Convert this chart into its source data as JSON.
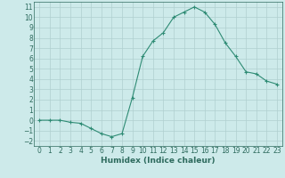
{
  "x": [
    0,
    1,
    2,
    3,
    4,
    5,
    6,
    7,
    8,
    9,
    10,
    11,
    12,
    13,
    14,
    15,
    16,
    17,
    18,
    19,
    20,
    21,
    22,
    23
  ],
  "y": [
    0,
    0,
    0,
    -0.2,
    -0.3,
    -0.8,
    -1.3,
    -1.6,
    -1.3,
    2.2,
    6.2,
    7.7,
    8.5,
    10.0,
    10.5,
    11.0,
    10.5,
    9.3,
    7.5,
    6.2,
    4.7,
    4.5,
    3.8,
    3.5
  ],
  "line_color": "#2e8b74",
  "marker": "+",
  "marker_size": 3,
  "marker_lw": 0.8,
  "bg_color": "#cdeaea",
  "grid_color": "#b0cfcf",
  "xlabel": "Humidex (Indice chaleur)",
  "xlim": [
    -0.5,
    23.5
  ],
  "ylim": [
    -2.5,
    11.5
  ],
  "yticks": [
    -2,
    -1,
    0,
    1,
    2,
    3,
    4,
    5,
    6,
    7,
    8,
    9,
    10,
    11
  ],
  "xticks": [
    0,
    1,
    2,
    3,
    4,
    5,
    6,
    7,
    8,
    9,
    10,
    11,
    12,
    13,
    14,
    15,
    16,
    17,
    18,
    19,
    20,
    21,
    22,
    23
  ],
  "tick_fontsize": 5.5,
  "xlabel_fontsize": 6.5,
  "label_color": "#2e6b5e"
}
